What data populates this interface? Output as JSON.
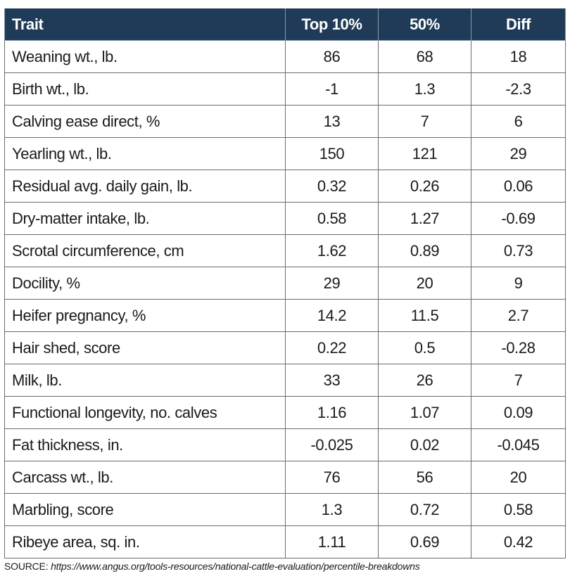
{
  "table": {
    "header": [
      "Trait",
      "Top 10%",
      "50%",
      "Diff"
    ],
    "rows": [
      [
        "Weaning wt., lb.",
        "86",
        "68",
        "18"
      ],
      [
        "Birth wt., lb.",
        "-1",
        "1.3",
        "-2.3"
      ],
      [
        "Calving ease direct, %",
        "13",
        "7",
        "6"
      ],
      [
        "Yearling wt., lb.",
        "150",
        "121",
        "29"
      ],
      [
        "Residual avg. daily gain, lb.",
        "0.32",
        "0.26",
        "0.06"
      ],
      [
        "Dry-matter intake, lb.",
        "0.58",
        "1.27",
        "-0.69"
      ],
      [
        "Scrotal circumference, cm",
        "1.62",
        "0.89",
        "0.73"
      ],
      [
        "Docility, %",
        "29",
        "20",
        "9"
      ],
      [
        "Heifer pregnancy, %",
        "14.2",
        "11.5",
        "2.7"
      ],
      [
        "Hair shed, score",
        "0.22",
        "0.5",
        "-0.28"
      ],
      [
        "Milk, lb.",
        "33",
        "26",
        "7"
      ],
      [
        "Functional longevity, no. calves",
        "1.16",
        "1.07",
        "0.09"
      ],
      [
        "Fat thickness, in.",
        "-0.025",
        "0.02",
        "-0.045"
      ],
      [
        "Carcass wt., lb.",
        "76",
        "56",
        "20"
      ],
      [
        "Marbling, score",
        "1.3",
        "0.72",
        "0.58"
      ],
      [
        "Ribeye area, sq. in.",
        "1.11",
        "0.69",
        "0.42"
      ]
    ]
  },
  "source": {
    "label": "SOURCE:",
    "url": "https://www.angus.org/tools-resources/national-cattle-evaluation/percentile-breakdowns"
  }
}
